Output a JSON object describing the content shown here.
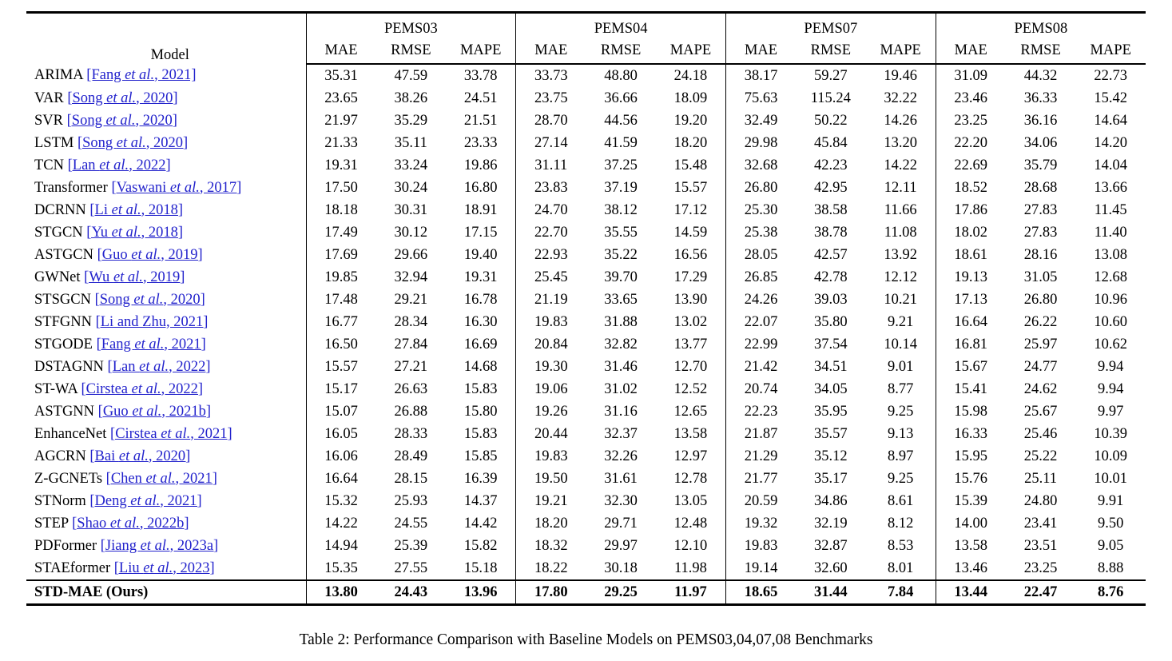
{
  "colors": {
    "link": "#2222cc",
    "text": "#000000",
    "background": "#ffffff"
  },
  "table": {
    "caption": "Table 2: Performance Comparison with Baseline Models on PEMS03,04,07,08 Benchmarks",
    "model_header": "Model",
    "groups": [
      {
        "name": "PEMS03",
        "metrics": [
          "MAE",
          "RMSE",
          "MAPE"
        ]
      },
      {
        "name": "PEMS04",
        "metrics": [
          "MAE",
          "RMSE",
          "MAPE"
        ]
      },
      {
        "name": "PEMS07",
        "metrics": [
          "MAE",
          "RMSE",
          "MAPE"
        ]
      },
      {
        "name": "PEMS08",
        "metrics": [
          "MAE",
          "RMSE",
          "MAPE"
        ]
      }
    ],
    "rows": [
      {
        "model": "ARIMA",
        "cite_before": "[Fang ",
        "cite_italic": "et al.",
        "cite_after": ", 2021]",
        "bold": false,
        "values": [
          "35.31",
          "47.59",
          "33.78",
          "33.73",
          "48.80",
          "24.18",
          "38.17",
          "59.27",
          "19.46",
          "31.09",
          "44.32",
          "22.73"
        ]
      },
      {
        "model": "VAR",
        "cite_before": "[Song ",
        "cite_italic": "et al.",
        "cite_after": ", 2020]",
        "bold": false,
        "values": [
          "23.65",
          "38.26",
          "24.51",
          "23.75",
          "36.66",
          "18.09",
          "75.63",
          "115.24",
          "32.22",
          "23.46",
          "36.33",
          "15.42"
        ]
      },
      {
        "model": "SVR",
        "cite_before": "[Song ",
        "cite_italic": "et al.",
        "cite_after": ", 2020]",
        "bold": false,
        "values": [
          "21.97",
          "35.29",
          "21.51",
          "28.70",
          "44.56",
          "19.20",
          "32.49",
          "50.22",
          "14.26",
          "23.25",
          "36.16",
          "14.64"
        ]
      },
      {
        "model": "LSTM",
        "cite_before": "[Song ",
        "cite_italic": "et al.",
        "cite_after": ", 2020]",
        "bold": false,
        "values": [
          "21.33",
          "35.11",
          "23.33",
          "27.14",
          "41.59",
          "18.20",
          "29.98",
          "45.84",
          "13.20",
          "22.20",
          "34.06",
          "14.20"
        ]
      },
      {
        "model": "TCN",
        "cite_before": "[Lan ",
        "cite_italic": "et al.",
        "cite_after": ", 2022]",
        "bold": false,
        "values": [
          "19.31",
          "33.24",
          "19.86",
          "31.11",
          "37.25",
          "15.48",
          "32.68",
          "42.23",
          "14.22",
          "22.69",
          "35.79",
          "14.04"
        ]
      },
      {
        "model": "Transformer",
        "cite_before": "[Vaswani ",
        "cite_italic": "et al.",
        "cite_after": ", 2017]",
        "bold": false,
        "values": [
          "17.50",
          "30.24",
          "16.80",
          "23.83",
          "37.19",
          "15.57",
          "26.80",
          "42.95",
          "12.11",
          "18.52",
          "28.68",
          "13.66"
        ]
      },
      {
        "model": "DCRNN",
        "cite_before": "[Li ",
        "cite_italic": "et al.",
        "cite_after": ", 2018]",
        "bold": false,
        "values": [
          "18.18",
          "30.31",
          "18.91",
          "24.70",
          "38.12",
          "17.12",
          "25.30",
          "38.58",
          "11.66",
          "17.86",
          "27.83",
          "11.45"
        ]
      },
      {
        "model": "STGCN",
        "cite_before": "[Yu ",
        "cite_italic": "et al.",
        "cite_after": ", 2018]",
        "bold": false,
        "values": [
          "17.49",
          "30.12",
          "17.15",
          "22.70",
          "35.55",
          "14.59",
          "25.38",
          "38.78",
          "11.08",
          "18.02",
          "27.83",
          "11.40"
        ]
      },
      {
        "model": "ASTGCN",
        "cite_before": "[Guo ",
        "cite_italic": "et al.",
        "cite_after": ", 2019]",
        "bold": false,
        "values": [
          "17.69",
          "29.66",
          "19.40",
          "22.93",
          "35.22",
          "16.56",
          "28.05",
          "42.57",
          "13.92",
          "18.61",
          "28.16",
          "13.08"
        ]
      },
      {
        "model": "GWNet",
        "cite_before": "[Wu ",
        "cite_italic": "et al.",
        "cite_after": ", 2019]",
        "bold": false,
        "values": [
          "19.85",
          "32.94",
          "19.31",
          "25.45",
          "39.70",
          "17.29",
          "26.85",
          "42.78",
          "12.12",
          "19.13",
          "31.05",
          "12.68"
        ]
      },
      {
        "model": "STSGCN",
        "cite_before": "[Song ",
        "cite_italic": "et al.",
        "cite_after": ", 2020]",
        "bold": false,
        "values": [
          "17.48",
          "29.21",
          "16.78",
          "21.19",
          "33.65",
          "13.90",
          "24.26",
          "39.03",
          "10.21",
          "17.13",
          "26.80",
          "10.96"
        ]
      },
      {
        "model": "STFGNN",
        "cite_before": "[Li and Zhu, 2021]",
        "cite_italic": "",
        "cite_after": "",
        "bold": false,
        "values": [
          "16.77",
          "28.34",
          "16.30",
          "19.83",
          "31.88",
          "13.02",
          "22.07",
          "35.80",
          "9.21",
          "16.64",
          "26.22",
          "10.60"
        ]
      },
      {
        "model": "STGODE",
        "cite_before": "[Fang ",
        "cite_italic": "et al.",
        "cite_after": ", 2021]",
        "bold": false,
        "values": [
          "16.50",
          "27.84",
          "16.69",
          "20.84",
          "32.82",
          "13.77",
          "22.99",
          "37.54",
          "10.14",
          "16.81",
          "25.97",
          "10.62"
        ]
      },
      {
        "model": "DSTAGNN",
        "cite_before": "[Lan ",
        "cite_italic": "et al.",
        "cite_after": ", 2022]",
        "bold": false,
        "values": [
          "15.57",
          "27.21",
          "14.68",
          "19.30",
          "31.46",
          "12.70",
          "21.42",
          "34.51",
          "9.01",
          "15.67",
          "24.77",
          "9.94"
        ]
      },
      {
        "model": "ST-WA",
        "cite_before": "[Cirstea ",
        "cite_italic": "et al.",
        "cite_after": ", 2022]",
        "bold": false,
        "values": [
          "15.17",
          "26.63",
          "15.83",
          "19.06",
          "31.02",
          "12.52",
          "20.74",
          "34.05",
          "8.77",
          "15.41",
          "24.62",
          "9.94"
        ]
      },
      {
        "model": "ASTGNN",
        "cite_before": "[Guo ",
        "cite_italic": "et al.",
        "cite_after": ", 2021b]",
        "bold": false,
        "values": [
          "15.07",
          "26.88",
          "15.80",
          "19.26",
          "31.16",
          "12.65",
          "22.23",
          "35.95",
          "9.25",
          "15.98",
          "25.67",
          "9.97"
        ]
      },
      {
        "model": "EnhanceNet",
        "cite_before": "[Cirstea ",
        "cite_italic": "et al.",
        "cite_after": ", 2021]",
        "bold": false,
        "values": [
          "16.05",
          "28.33",
          "15.83",
          "20.44",
          "32.37",
          "13.58",
          "21.87",
          "35.57",
          "9.13",
          "16.33",
          "25.46",
          "10.39"
        ]
      },
      {
        "model": "AGCRN",
        "cite_before": "[Bai ",
        "cite_italic": "et al.",
        "cite_after": ", 2020]",
        "bold": false,
        "values": [
          "16.06",
          "28.49",
          "15.85",
          "19.83",
          "32.26",
          "12.97",
          "21.29",
          "35.12",
          "8.97",
          "15.95",
          "25.22",
          "10.09"
        ]
      },
      {
        "model": "Z-GCNETs",
        "cite_before": "[Chen ",
        "cite_italic": "et al.",
        "cite_after": ", 2021]",
        "bold": false,
        "values": [
          "16.64",
          "28.15",
          "16.39",
          "19.50",
          "31.61",
          "12.78",
          "21.77",
          "35.17",
          "9.25",
          "15.76",
          "25.11",
          "10.01"
        ]
      },
      {
        "model": "STNorm",
        "cite_before": "[Deng ",
        "cite_italic": "et al.",
        "cite_after": ", 2021]",
        "bold": false,
        "values": [
          "15.32",
          "25.93",
          "14.37",
          "19.21",
          "32.30",
          "13.05",
          "20.59",
          "34.86",
          "8.61",
          "15.39",
          "24.80",
          "9.91"
        ]
      },
      {
        "model": "STEP",
        "cite_before": "[Shao ",
        "cite_italic": "et al.",
        "cite_after": ", 2022b]",
        "bold": false,
        "values": [
          "14.22",
          "24.55",
          "14.42",
          "18.20",
          "29.71",
          "12.48",
          "19.32",
          "32.19",
          "8.12",
          "14.00",
          "23.41",
          "9.50"
        ]
      },
      {
        "model": "PDFormer",
        "cite_before": "[Jiang ",
        "cite_italic": "et al.",
        "cite_after": ", 2023a]",
        "bold": false,
        "values": [
          "14.94",
          "25.39",
          "15.82",
          "18.32",
          "29.97",
          "12.10",
          "19.83",
          "32.87",
          "8.53",
          "13.58",
          "23.51",
          "9.05"
        ]
      },
      {
        "model": "STAEformer",
        "cite_before": "[Liu ",
        "cite_italic": "et al.",
        "cite_after": ", 2023]",
        "bold": false,
        "values": [
          "15.35",
          "27.55",
          "15.18",
          "18.22",
          "30.18",
          "11.98",
          "19.14",
          "32.60",
          "8.01",
          "13.46",
          "23.25",
          "8.88"
        ]
      },
      {
        "model": "STD-MAE (Ours)",
        "cite_before": "",
        "cite_italic": "",
        "cite_after": "",
        "bold": true,
        "values": [
          "13.80",
          "24.43",
          "13.96",
          "17.80",
          "29.25",
          "11.97",
          "18.65",
          "31.44",
          "7.84",
          "13.44",
          "22.47",
          "8.76"
        ]
      }
    ]
  }
}
